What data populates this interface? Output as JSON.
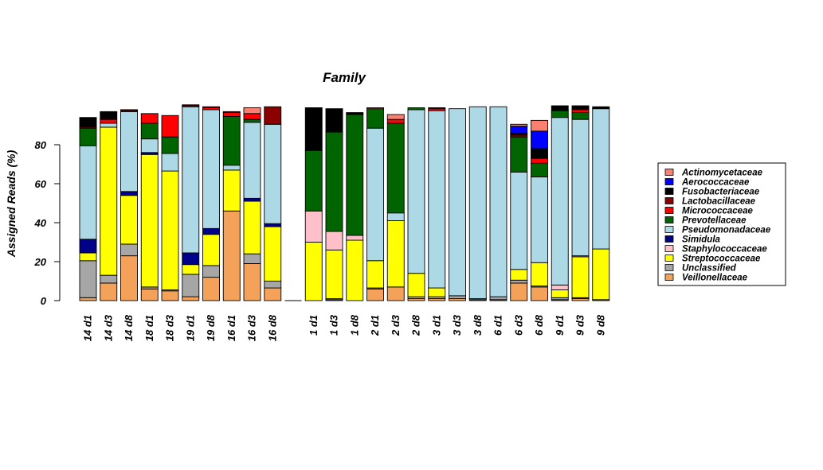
{
  "chart_data": {
    "type": "bar",
    "stacked": true,
    "title": "Family",
    "xlabel": "",
    "ylabel": "Assigned Reads (%)",
    "ylim": [
      0,
      100
    ],
    "yticks": [
      0,
      20,
      40,
      60,
      80
    ],
    "grid": false,
    "legend_position": "right",
    "categories": [
      "14 d1",
      "14 d3",
      "14 d8",
      "18 d1",
      "18 d3",
      "19 d1",
      "19 d8",
      "16 d1",
      "16 d3",
      "16 d8",
      "",
      "1 d1",
      "1 d3",
      "1 d8",
      "2 d1",
      "2 d3",
      "2 d8",
      "3 d1",
      "3 d3",
      "3 d8",
      "6 d1",
      "6 d3",
      "6 d8",
      "9 d1",
      "9 d3",
      "9 d8"
    ],
    "series": [
      {
        "name": "Veillonellaceae",
        "color": "#F4A25A",
        "values": [
          1.5,
          9,
          23,
          6,
          5,
          2,
          12,
          46,
          19,
          6.5,
          0,
          0,
          0.5,
          0,
          6,
          7,
          1,
          1,
          1,
          0.5,
          0.5,
          9,
          7,
          0.5,
          1,
          0
        ]
      },
      {
        "name": "Unclassified",
        "color": "#A6A6A6",
        "values": [
          19,
          4,
          6,
          1,
          0.5,
          11.5,
          6,
          0,
          5,
          3.5,
          0,
          0,
          0.5,
          0,
          0.5,
          0,
          1,
          1,
          1.5,
          0.5,
          1.5,
          1.5,
          0.5,
          1,
          0.5,
          0.5
        ]
      },
      {
        "name": "Streptococcaceae",
        "color": "#FFFF00",
        "values": [
          4,
          76,
          25,
          68,
          61,
          5,
          16,
          21,
          27,
          28,
          0,
          30,
          25,
          31,
          14,
          34,
          12,
          4.5,
          0,
          0,
          0,
          5.5,
          12,
          4,
          21,
          26
        ]
      },
      {
        "name": "Staphylococcaceae",
        "color": "#FFC0CB",
        "values": [
          0,
          0,
          0,
          0,
          0,
          0,
          0,
          0,
          0,
          0,
          0,
          16,
          9.5,
          2.5,
          0,
          0,
          0,
          0,
          0,
          0,
          0,
          0,
          0,
          2.5,
          0.5,
          0
        ]
      },
      {
        "name": "Simidula",
        "color": "#00008B",
        "values": [
          7,
          0,
          2,
          1,
          0,
          6,
          3,
          0,
          1.5,
          1.5,
          0,
          0,
          0,
          0,
          0,
          0,
          0,
          0,
          0,
          0,
          0,
          0,
          0,
          0,
          0,
          0
        ]
      },
      {
        "name": "Pseudomonadaceae",
        "color": "#ADD8E6",
        "values": [
          48,
          2,
          41,
          7,
          9,
          75,
          61,
          2.5,
          39,
          51,
          0,
          0,
          0,
          0,
          68,
          4,
          84,
          91,
          96,
          98.5,
          97.5,
          50,
          44,
          86,
          70,
          72
        ]
      },
      {
        "name": "Prevotellaceae",
        "color": "#006400",
        "values": [
          9,
          0,
          0,
          8,
          8.5,
          0,
          0,
          25,
          1.5,
          0,
          0,
          31,
          51,
          62,
          10,
          46,
          1,
          0,
          0,
          0,
          0,
          18,
          7,
          3.5,
          3.5,
          0
        ]
      },
      {
        "name": "Micrococcaceae",
        "color": "#FF0000",
        "values": [
          0.5,
          2,
          0.5,
          5,
          11,
          0.5,
          1,
          2,
          3,
          0,
          0,
          0,
          0,
          0,
          0,
          2,
          0,
          1,
          0,
          0,
          0,
          0,
          2.5,
          0,
          1.5,
          0
        ]
      },
      {
        "name": "Lactobacillaceae",
        "color": "#8B0000",
        "values": [
          0.5,
          0,
          0.5,
          0,
          0,
          0.5,
          0.5,
          0.5,
          0,
          9,
          0,
          0,
          0,
          0,
          0,
          0,
          0,
          0.5,
          0,
          0,
          0,
          1,
          0,
          0,
          0.5,
          0
        ]
      },
      {
        "name": "Fusobacteriaceae",
        "color": "#000000",
        "values": [
          4.5,
          4,
          0,
          0,
          0,
          0,
          0,
          0,
          0,
          0,
          0,
          22,
          12,
          1,
          0,
          0,
          0,
          0,
          0,
          0,
          0,
          1,
          5,
          2.5,
          1.5,
          1
        ]
      },
      {
        "name": "Aerococcaceae",
        "color": "#0000FF",
        "values": [
          0,
          0,
          0,
          0,
          0,
          0,
          0,
          0,
          0,
          0,
          0,
          0,
          0,
          0,
          0,
          0,
          0,
          0,
          0,
          0,
          0,
          3.5,
          9,
          0,
          0,
          0
        ]
      },
      {
        "name": "Actinomycetaceae",
        "color": "#FA8072",
        "values": [
          0,
          0,
          0,
          0,
          0,
          0,
          0,
          0,
          3,
          0,
          0,
          0,
          0,
          0,
          0.5,
          2.5,
          0,
          0,
          0,
          0,
          0,
          1,
          5.5,
          0,
          0,
          0
        ]
      }
    ],
    "legend_order": [
      "Actinomycetaceae",
      "Aerococcaceae",
      "Fusobacteriaceae",
      "Lactobacillaceae",
      "Micrococcaceae",
      "Prevotellaceae",
      "Pseudomonadaceae",
      "Simidula",
      "Staphylococcaceae",
      "Streptococcaceae",
      "Unclassified",
      "Veillonellaceae"
    ]
  }
}
